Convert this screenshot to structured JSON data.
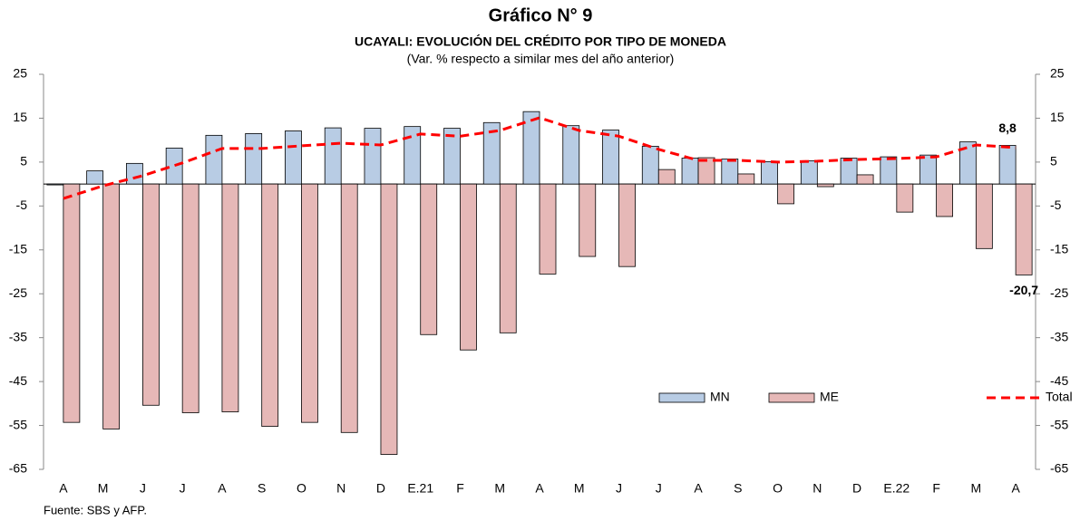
{
  "chart_data": {
    "type": "bar",
    "title": "Gráfico N° 9",
    "subtitle": "UCAYALI: EVOLUCIÓN DEL CRÉDITO POR TIPO DE MONEDA",
    "note": "(Var. % respecto a similar mes del año anterior)",
    "source": "Fuente: SBS y AFP.",
    "categories": [
      "A",
      "M",
      "J",
      "J",
      "A",
      "S",
      "O",
      "N",
      "D",
      "E.21",
      "F",
      "M",
      "A",
      "M",
      "J",
      "J",
      "A",
      "S",
      "O",
      "N",
      "D",
      "E.22",
      "F",
      "M",
      "A"
    ],
    "series": [
      {
        "name": "MN",
        "type": "bar",
        "color": "#b8cce4",
        "values": [
          -0.2,
          3.0,
          4.7,
          8.2,
          11.1,
          11.5,
          12.1,
          12.8,
          12.7,
          13.1,
          12.7,
          14.0,
          16.5,
          13.3,
          12.3,
          8.6,
          5.9,
          5.7,
          5.1,
          5.3,
          5.9,
          6.2,
          6.6,
          9.6,
          8.8
        ],
        "value_labels": [
          null,
          null,
          null,
          null,
          null,
          null,
          null,
          null,
          null,
          null,
          null,
          null,
          null,
          null,
          null,
          null,
          null,
          null,
          null,
          null,
          null,
          null,
          null,
          null,
          "8,8"
        ]
      },
      {
        "name": "ME",
        "type": "bar",
        "color": "#e6b8b7",
        "values": [
          -54.3,
          -55.8,
          -50.4,
          -52.1,
          -51.9,
          -55.2,
          -54.3,
          -56.6,
          -61.6,
          -34.3,
          -37.8,
          -33.9,
          -20.5,
          -16.5,
          -18.8,
          3.3,
          6.0,
          2.3,
          -4.5,
          -0.6,
          2.1,
          -6.4,
          -7.4,
          -14.7,
          -20.7
        ],
        "value_labels": [
          null,
          null,
          null,
          null,
          null,
          null,
          null,
          null,
          null,
          null,
          null,
          null,
          null,
          null,
          null,
          null,
          null,
          null,
          null,
          null,
          null,
          null,
          null,
          null,
          "-20,7"
        ]
      },
      {
        "name": "Total",
        "type": "line",
        "color": "#ff0000",
        "values": [
          -3.3,
          -0.4,
          1.9,
          4.8,
          8.1,
          8.1,
          8.7,
          9.3,
          8.9,
          11.4,
          10.9,
          12.2,
          15.1,
          12.2,
          10.9,
          7.9,
          5.4,
          5.4,
          5.0,
          5.2,
          5.6,
          5.8,
          6.2,
          8.9,
          8.3
        ]
      }
    ],
    "ylim": [
      -65,
      25
    ],
    "yticks": [
      -65,
      -55,
      -45,
      -35,
      -25,
      -15,
      -5,
      5,
      15,
      25
    ],
    "y2lim": [
      -65,
      25
    ],
    "y2ticks": [
      -65,
      -55,
      -45,
      -35,
      -25,
      -15,
      -5,
      5,
      15,
      25
    ],
    "grid": false,
    "legend": "lower-right"
  }
}
